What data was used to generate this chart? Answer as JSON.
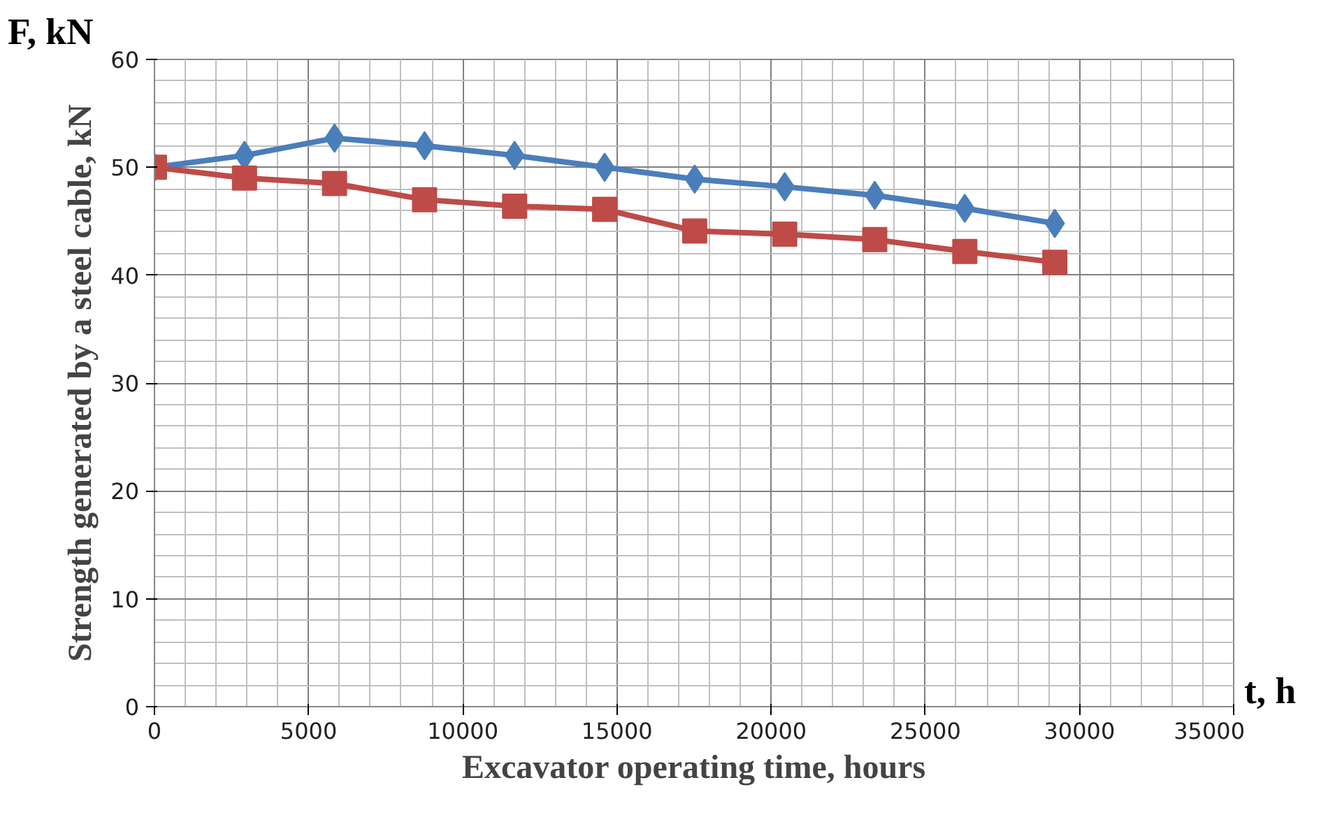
{
  "chart_data": {
    "type": "line",
    "xlabel": "Excavator operating time, hours",
    "ylabel": "Strength generated by a steel cable, kN",
    "annotations": [
      "F, kN",
      "t, h"
    ],
    "x": [
      0,
      2920,
      5840,
      8760,
      11680,
      14600,
      17520,
      20440,
      23360,
      26280,
      29200
    ],
    "series": [
      {
        "color": "#4a7ebb",
        "marker": "diamond",
        "values": [
          50.0,
          51.1,
          52.7,
          52.0,
          51.1,
          50.0,
          48.9,
          48.2,
          47.4,
          46.2,
          44.8
        ]
      },
      {
        "color": "#be4b48",
        "marker": "square",
        "values": [
          50.0,
          49.0,
          48.5,
          47.0,
          46.4,
          46.1,
          44.1,
          43.8,
          43.3,
          42.2,
          41.2
        ]
      }
    ],
    "xlim": [
      0,
      35000
    ],
    "xticks": [
      0,
      5000,
      10000,
      15000,
      20000,
      25000,
      30000,
      35000
    ],
    "ylim": [
      0,
      60
    ],
    "yticks": [
      0,
      10,
      20,
      30,
      40,
      50,
      60
    ],
    "grid": true,
    "line_style": "solid"
  }
}
